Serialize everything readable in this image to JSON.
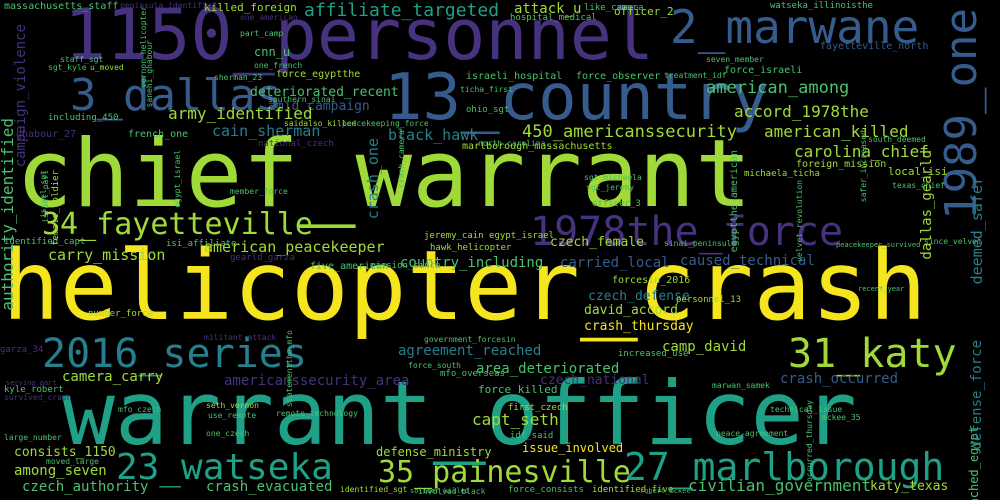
{
  "palette": {
    "background": "#000000",
    "yellow": "#f5e51f",
    "lime": "#a0da39",
    "green": "#4ac16d",
    "teal": "#1fa187",
    "blue": "#277f8e",
    "slate": "#365c8d",
    "indigo": "#46327e",
    "purple": "#440154"
  },
  "words": {
    "chief_warrant": "chief_warrant",
    "helicopter_crash": "helicopter_crash",
    "warrant_officer": "warrant_officer",
    "personnel_1150": "1150_personnel",
    "marwane_2": "2_marwane",
    "country_13": "13_country",
    "dallas_3": "3_dallas",
    "one_1989": "1989_one",
    "fayetteville_34": "34_fayetteville",
    "force_1978": "1978the_force",
    "series_2016": "2016_series",
    "katy_31": "31_katy",
    "watseka_23": "23_watseka",
    "marlborough_27": "27_marlborough",
    "painesville_35": "35_painesville",
    "affiliate_targeted": "affiliate_targeted",
    "american_among": "american_among",
    "accord_1978the": "accord_1978the",
    "american_killed": "american_killed",
    "carolina_chief": "carolina_chief",
    "deteriorated_recent": "deteriorated_recent",
    "amid_campaign": "amid_campaign",
    "army_identified": "army_identified",
    "cain_sherman": "cain_sherman",
    "americanssecurity_450": "450_americanssecurity",
    "black_hawk": "black_hawk",
    "crash_one": "crash_one",
    "czech_female": "czech_female",
    "american_peacekeeper": "american_peacekeeper",
    "carry_mission": "carry_mission",
    "country_including": "country_including",
    "carried_local": "carried_local",
    "caused_technical": "caused_technical",
    "czech_defense": "czech_defense",
    "david_accord": "david_accord",
    "crash_thursday": "crash_thursday",
    "agreement_reached": "agreement_reached",
    "camp_david": "camp_david",
    "camera_carry": "camera_carry",
    "americanssecurity_area": "americanssecurity_area",
    "area_deteriorated": "area_deteriorated",
    "czech_national": "czech_national",
    "crash_occurred": "crash_occurred",
    "force_killed": "force_killed",
    "capt_seth": "capt_seth",
    "consists_1150": "consists_1150",
    "among_seven": "among_seven",
    "czech_authority": "czech_authority",
    "crash_evacuated": "crash_evacuated",
    "defense_ministry": "defense_ministry",
    "issue_involved": "issue_involved",
    "civilian_government": "civilian_government",
    "katy_texas": "katy_texas",
    "reached_egypt": "reached_egypt",
    "authority_identified": "authority_identified",
    "campaign_violence": "campaign_violence",
    "deemed_safer": "deemed_safer",
    "defense_force": "defense_force",
    "dallas_gearld": "dallas_gearld",
    "massachusetts_staff": "massachusetts_staff",
    "killed_foreign": "killed_foreign",
    "attack_u": "attack_u",
    "officer_2": "officer_2",
    "watseka_illinoisthe": "watseka_illinoisthe",
    "fayetteville_north": "fayetteville_north",
    "force_israeli": "force_israeli",
    "force_egyptthe": "force_egyptthe",
    "force_observer": "force_observer",
    "israeli_hospital": "israeli_hospital",
    "hospital_medical": "hospital_medical",
    "cnn_u": "cnn_u",
    "one_french": "one_french",
    "french_one": "french_one",
    "ghabour_27": "ghabour_27",
    "israeli_defense": "israeli_defense",
    "identified_capt": "identified_capt",
    "isi_affiliate": "isi_affiliate",
    "gearld_garza": "gearld_garza",
    "five_american": "five_american",
    "mission_since": "mission_since",
    "jeremy_cain": "jeremy_cain egypt_israel",
    "hawk_helicopter": "hawk_helicopter",
    "forcesin_2016": "forcesin_2016",
    "personnel_13": "personnel_13",
    "number_force": "number_force",
    "kyle_robert": "kyle_robert",
    "large_number": "large_number",
    "moved_large": "moved_large",
    "idf_said": "idf_said",
    "first_czech": "first_czech",
    "mckee_35": "mckee_35",
    "local_isi": "local_isi",
    "egyptthe_american": "egyptthe_american",
    "sinai_peninsula": "sinai_peninsula",
    "officer_3": "officer_3",
    "sgt_michaela": "sgt_michaela",
    "michaela_ticha": "michaela_ticha",
    "south_deemed": "south_deemed",
    "texas_chief": "texas_chief",
    "foreign_mission": "foreign_mission",
    "marlborough_massachusetts": "marlborough_massachusetts",
    "north_carolina": "north_carolina",
    "saidalso_killed": "saidalso_killed",
    "member_force": "member_force",
    "female_soldier": "female_soldier",
    "israel_part": "israel_part",
    "including_450": "including_450",
    "sgt_kyle": "sgt_kyle",
    "staff_sgt": "staff_sgt",
    "u_moved": "u_moved",
    "government_forcesin": "government_forcesin",
    "mfo_overseas": "mfo_overseas",
    "force_south": "force_south",
    "seth_vernon": "seth_vernon",
    "use_remote": "use_remote",
    "one_czech": "one_czech",
    "force_consists": "force_consists",
    "identified_sgt": "identified_sgt",
    "involved_black": "involved_black",
    "identified_five": "identified_five",
    "robert_mckee": "robert_mckee",
    "solider_killed": "solider_killed",
    "increased_use": "increased_use",
    "occurred_thursday": "occurred_thursday",
    "treatment_idf": "treatment_idf",
    "seven_member": "seven_member",
    "like_camera": "like_camera",
    "peninsula_identified": "peninsula_identified",
    "one_american": "one_american",
    "part_camp": "part_camp",
    "vernon_helicopter": "vernon_helicopter",
    "sanehi_ghabour": "sanehi_ghabour",
    "ticha_first": "ticha_first",
    "ohio_sgt": "ohio_sgt",
    "southern_sinai": "southern_sinai",
    "peacekeeping_force": "peacekeeping_force",
    "sherman_23": "sherman_23",
    "including_450b": "including 450",
    "national_czech": "national_czech",
    "velvet_revolution": "velvet_revolution",
    "since_velvet": "since_velvet",
    "recent_year": "recent_year",
    "technical_issue": "technical_issue",
    "peace_agreement": "peace_agreement",
    "marwan_samek": "marwan_samek",
    "mfo_czech": "mfo_czech",
    "peacekeeper_survived": "peacekeeper_survived",
    "survived_crash": "survived_crash",
    "sgt_jeremy": "sgt_jeremy",
    "crash_camera": "crash_camera",
    "israel_sgt": "israel_sgt",
    "safer_increased": "safer_increased",
    "remote_technology": "remote_technology",
    "serving_part": "serving_part",
    "statementthe_mfo": "statementthe_mfo",
    "egypt_israel": "egypt_israel",
    "militant_attack": "militant_attack",
    "garza_34": "garza_34"
  }
}
